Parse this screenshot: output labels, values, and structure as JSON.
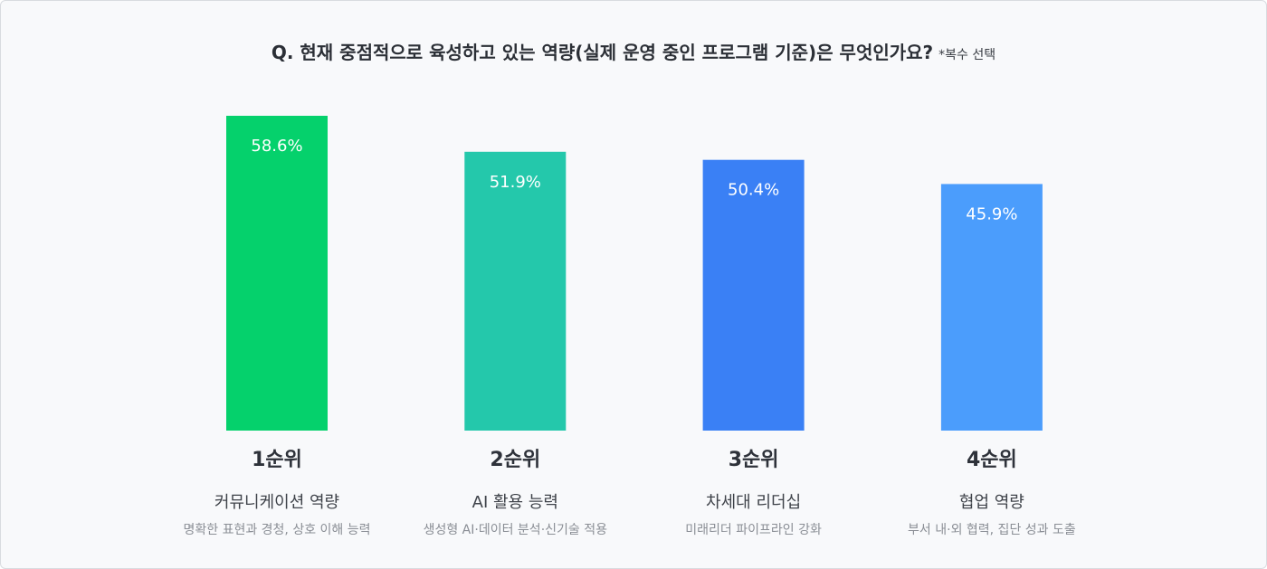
{
  "chart_data": {
    "type": "bar",
    "title": "Q. 현재 중점적으로 육성하고 있는 역량(실제 운영 중인 프로그램 기준)은 무엇인가요?",
    "subtitle": "*복수 선택",
    "categories": [
      "1순위",
      "2순위",
      "3순위",
      "4순위"
    ],
    "names": [
      "커뮤니케이션 역량",
      "AI 활용 능력",
      "차세대 리더십",
      "협업 역량"
    ],
    "descriptions": [
      "명확한 표현과 경청, 상호 이해 능력",
      "생성형 AI·데이터 분석·신기술 적용",
      "미래리더 파이프라인 강화",
      "부서 내·외 협력, 집단 성과 도출"
    ],
    "values": [
      58.6,
      51.9,
      50.4,
      45.9
    ],
    "value_labels": [
      "58.6%",
      "51.9%",
      "50.4%",
      "45.9%"
    ],
    "colors": [
      "#05d16c",
      "#24c8ab",
      "#3a80f5",
      "#4b9dfc"
    ]
  }
}
